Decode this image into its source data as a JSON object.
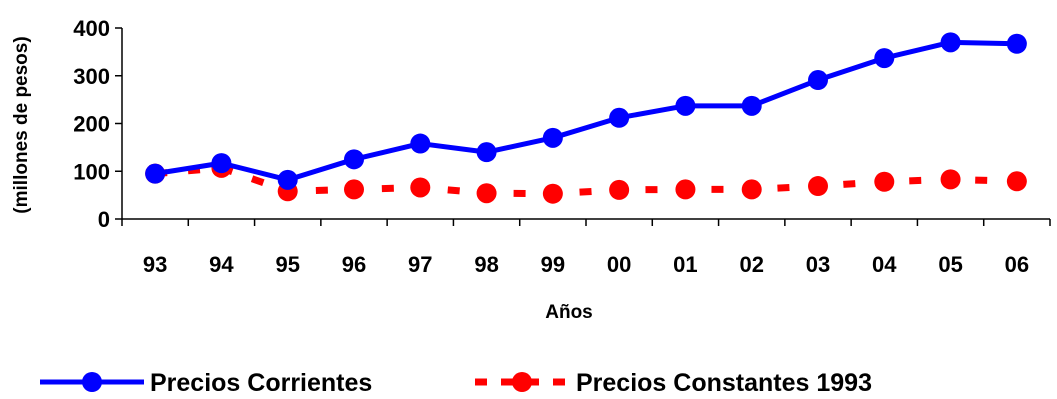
{
  "chart_data": {
    "type": "line",
    "title": "",
    "xlabel": "Años",
    "ylabel": "(millones de pesos)",
    "ylim": [
      0,
      400
    ],
    "yticks": [
      0,
      100,
      200,
      300,
      400
    ],
    "categories": [
      "93",
      "94",
      "95",
      "96",
      "97",
      "98",
      "99",
      "00",
      "01",
      "02",
      "03",
      "04",
      "05",
      "06"
    ],
    "grid": false,
    "legend_position": "bottom",
    "series": [
      {
        "name": "Precios Corrientes",
        "style": "solid",
        "marker": "circle",
        "color": "#0000ff",
        "values": [
          95,
          117,
          82,
          125,
          158,
          140,
          170,
          212,
          237,
          237,
          291,
          337,
          370,
          367
        ]
      },
      {
        "name": "Precios Constantes 1993",
        "style": "dashed",
        "marker": "circle",
        "color": "#ff0000",
        "values": [
          95,
          107,
          58,
          62,
          66,
          54,
          53,
          61,
          62,
          62,
          69,
          78,
          83,
          79
        ]
      }
    ]
  }
}
